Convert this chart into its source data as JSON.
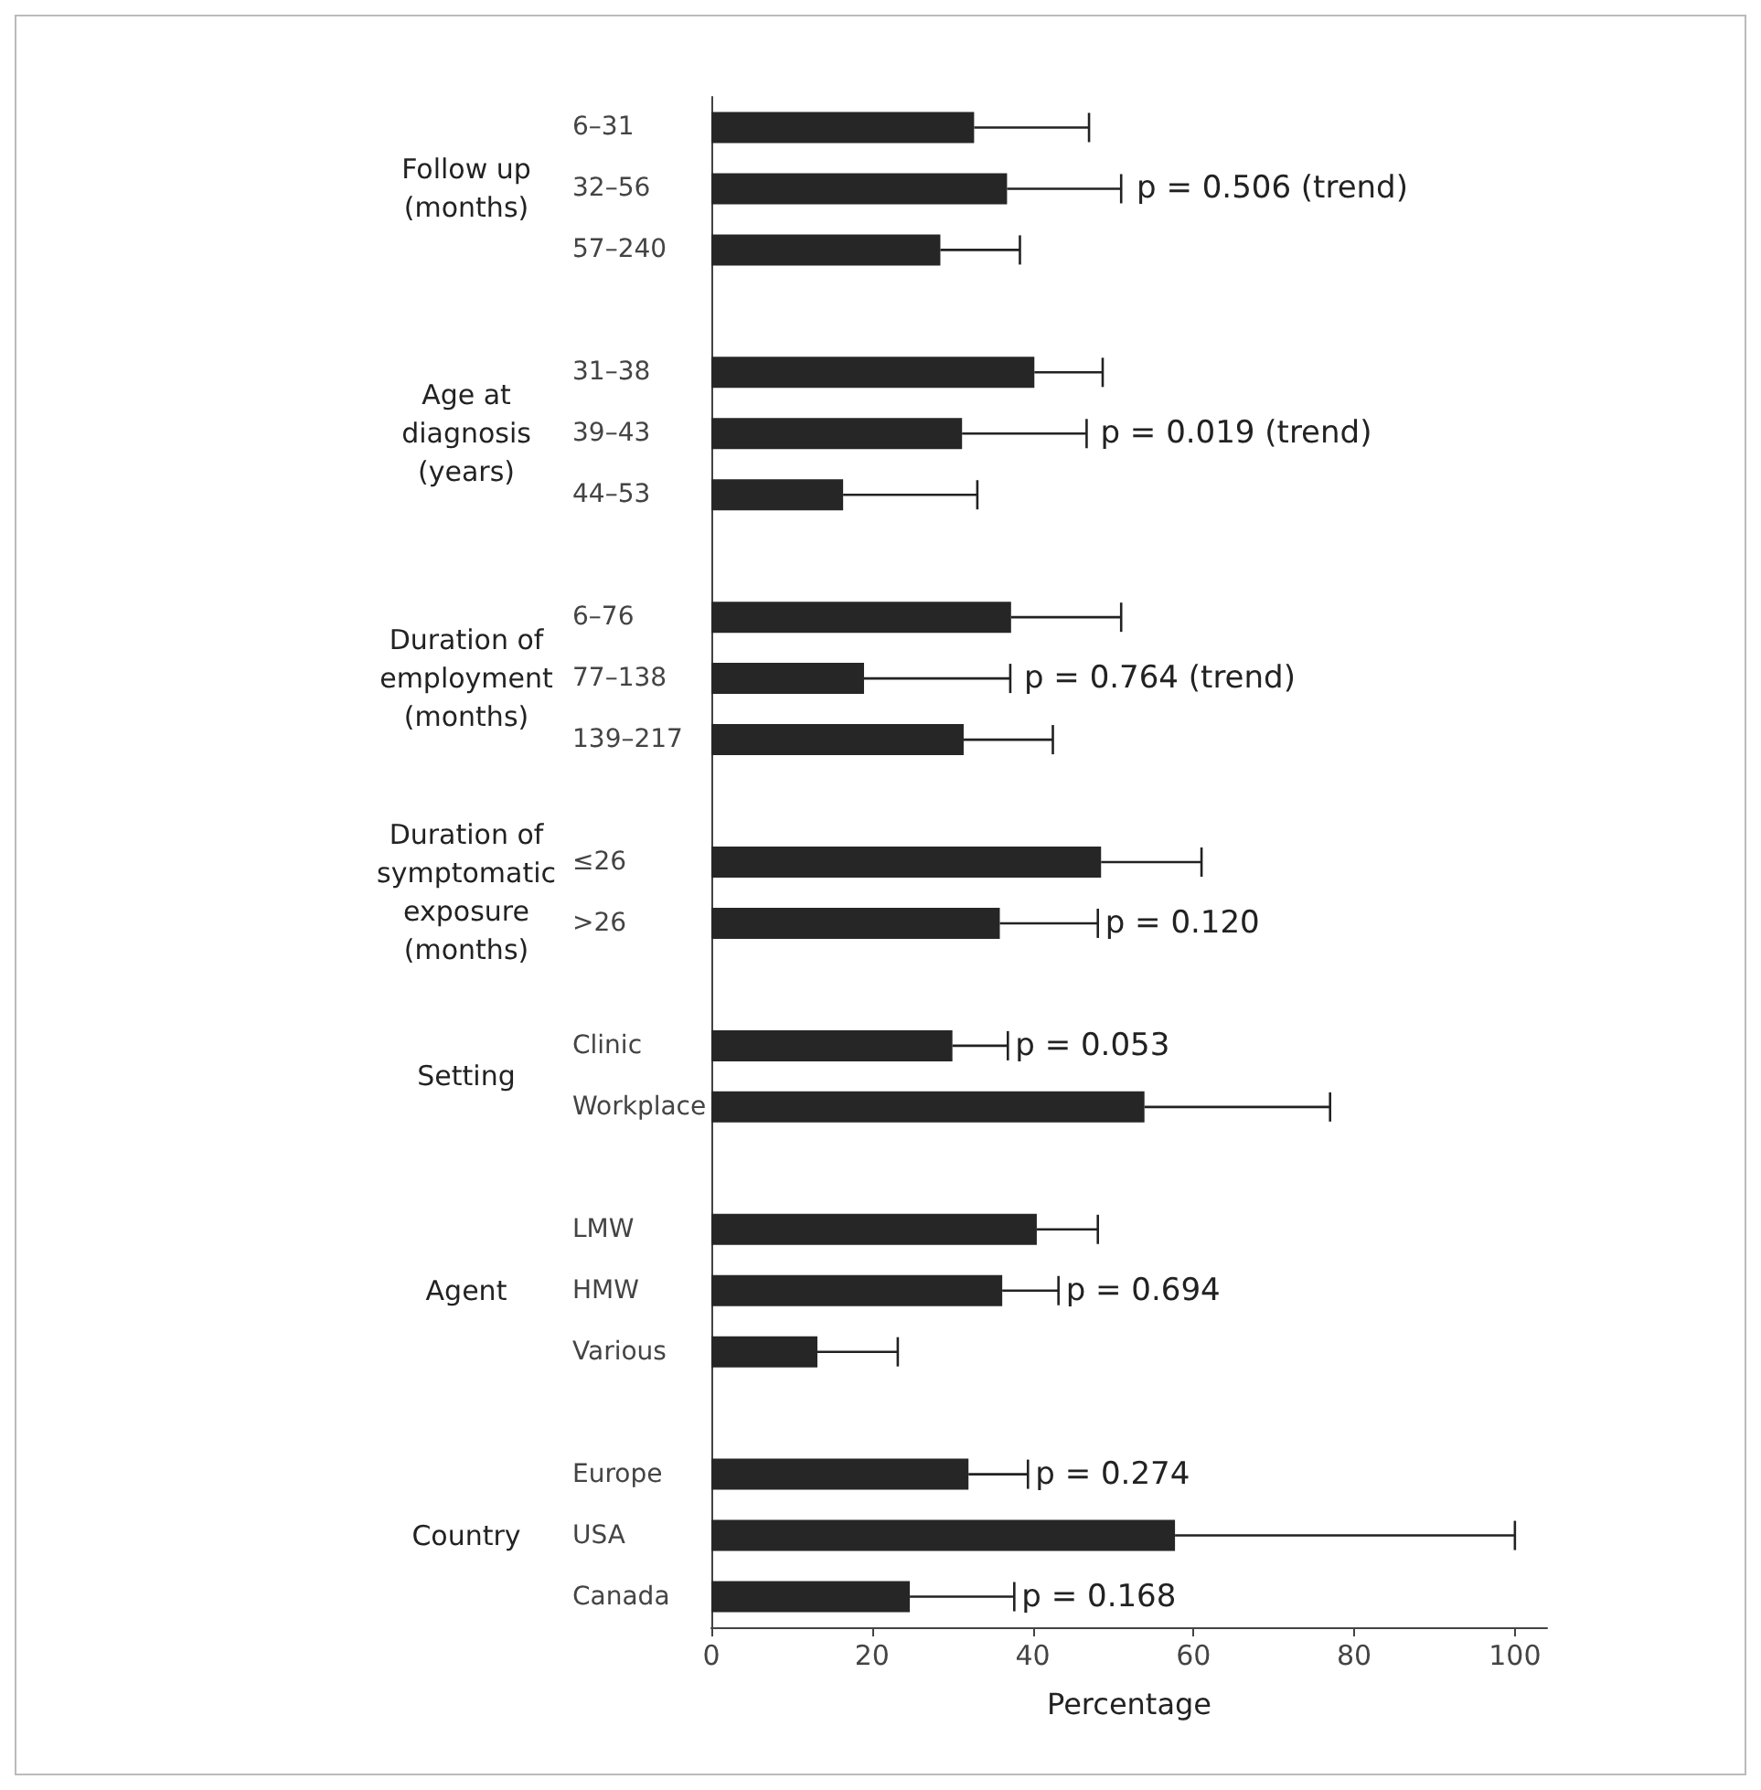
{
  "chart_data": {
    "type": "bar",
    "orientation": "horizontal",
    "xlabel": "Percentage",
    "categories": [
      "6–31",
      "32–56",
      "57–240",
      null,
      "31–38",
      "39–43",
      "44–53",
      null,
      "6–76",
      "77–138",
      "139–217",
      null,
      "≤26",
      ">26",
      null,
      "Clinic",
      "Workplace",
      null,
      "LMW",
      "HMW",
      "Various",
      null,
      "Europe",
      "USA",
      "Canada"
    ],
    "values": [
      32.7,
      36.8,
      28.5,
      null,
      40.2,
      31.2,
      16.4,
      null,
      37.3,
      19.0,
      31.4,
      null,
      48.5,
      35.9,
      null,
      30.0,
      53.9,
      null,
      40.5,
      36.2,
      13.2,
      null,
      32.0,
      57.7,
      24.7
    ],
    "errors": [
      [
        32.7,
        47.0
      ],
      [
        36.8,
        51.0
      ],
      [
        28.5,
        38.4
      ],
      null,
      [
        40.2,
        48.7
      ],
      [
        31.2,
        46.7
      ],
      [
        16.4,
        33.1
      ],
      null,
      [
        37.3,
        51.0
      ],
      [
        19.0,
        37.2
      ],
      [
        31.4,
        42.5
      ],
      null,
      [
        48.5,
        61.0
      ],
      [
        35.9,
        48.1
      ],
      null,
      [
        30.0,
        36.9
      ],
      [
        53.9,
        77.0
      ],
      null,
      [
        40.5,
        48.1
      ],
      [
        36.2,
        43.2
      ],
      [
        13.2,
        23.2
      ],
      null,
      [
        32.0,
        39.4
      ],
      [
        57.7,
        100
      ],
      [
        24.7,
        37.7
      ]
    ],
    "color": "#262626",
    "xlim": [
      0,
      104
    ],
    "xticks": [
      0,
      20,
      40,
      60,
      80,
      100
    ],
    "grid": false,
    "annotations": [
      "Follow up\n(months)",
      "Age at\ndiagnosis\n(years)",
      "Duration of\nemployment\n(months)",
      "Duration of\nsymptomatic\nexposure\n(months)",
      "Setting",
      "Agent",
      "Country",
      {
        "text": "p = 0.506 (trend)",
        "x": 52,
        "y": "32–56"
      },
      {
        "text": "p = 0.019 (trend)",
        "x": 47.5,
        "y": "39–43"
      },
      {
        "text": "p = 0.764 (trend)",
        "x": 38,
        "y": "77–138"
      },
      {
        "text": "p = 0.120",
        "x": 48.1,
        "y": ">26"
      },
      {
        "text": "p = 0.053",
        "x": 36.9,
        "y": "Clinic"
      },
      {
        "text": "p = 0.694",
        "x": 43.2,
        "y": "HMW"
      },
      {
        "text": "p = 0.274",
        "x": 39.4,
        "y": "Europe"
      },
      {
        "text": "p = 0.168",
        "x": 37.7,
        "y": "Canada"
      }
    ]
  }
}
